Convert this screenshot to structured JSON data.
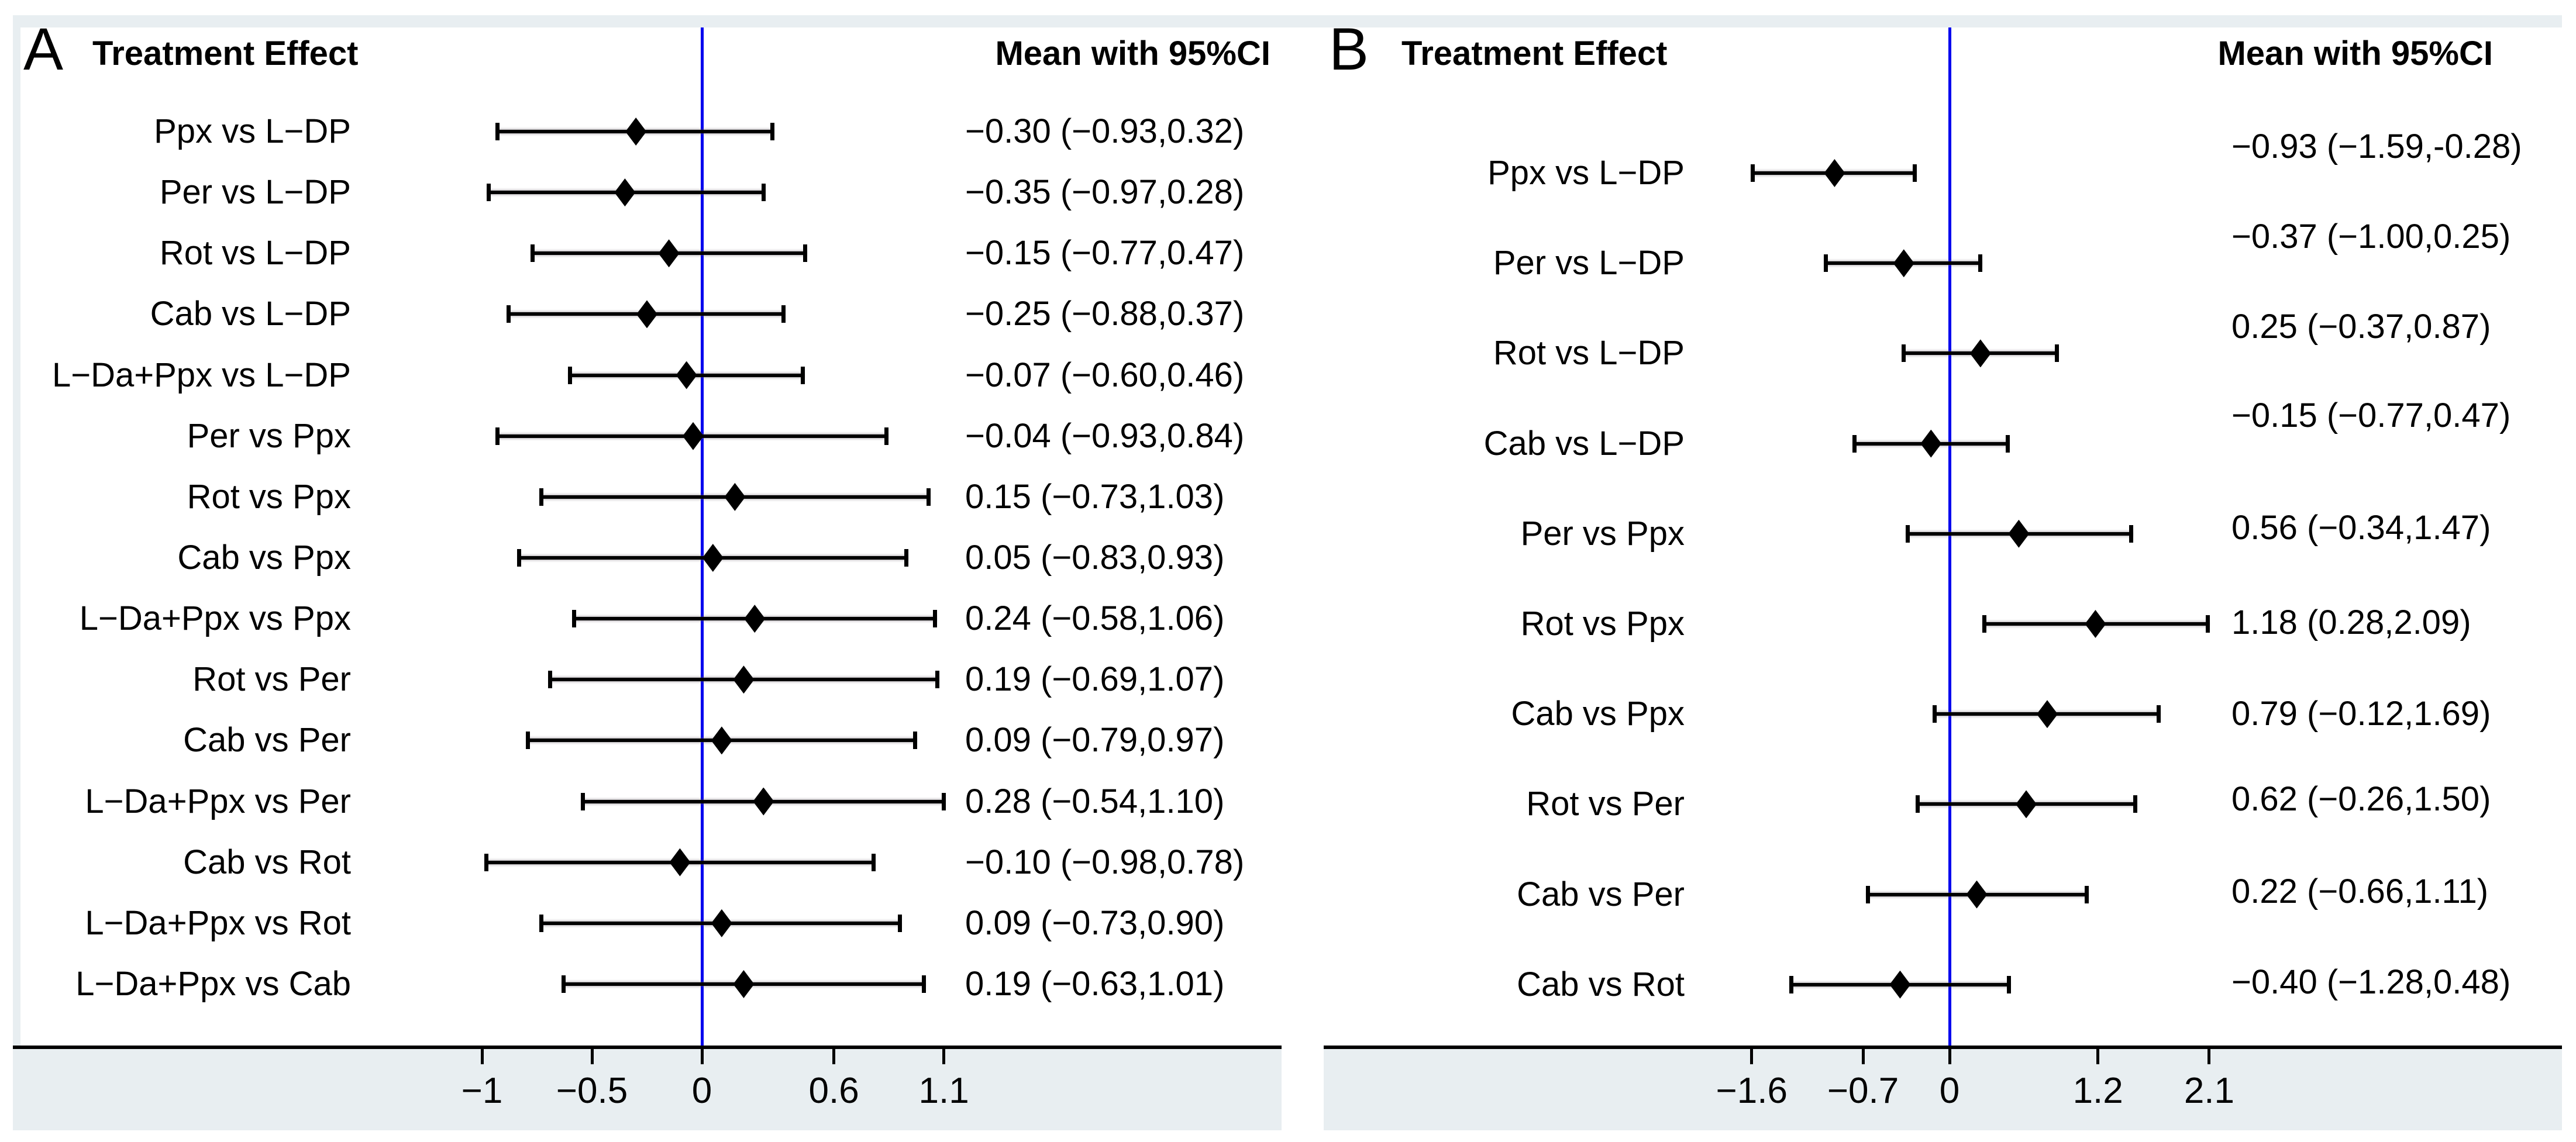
{
  "chart_data": {
    "type": "forest",
    "title": "",
    "grid": false,
    "legend_position": "none",
    "colors": {
      "zero_line": "#0000ee",
      "band": "#e8eef1",
      "ink": "#000000"
    },
    "panels": [
      {
        "panel_letter": "A",
        "header_left": "Treatment Effect",
        "header_right": "Mean with 95%CI",
        "zero_line_value": 0,
        "xlim": [
          -1.35,
          1.55
        ],
        "axis_ticks": [
          {
            "value": -1.0,
            "label": "−1"
          },
          {
            "value": -0.5,
            "label": "−0.5"
          },
          {
            "value": 0.0,
            "label": "0"
          },
          {
            "value": 0.6,
            "label": "0.6"
          },
          {
            "value": 1.1,
            "label": "1.1"
          }
        ],
        "rows": [
          {
            "label": "Ppx vs L−DP",
            "mean": -0.3,
            "ci_low": -0.93,
            "ci_high": 0.32,
            "text": "−0.30 (−0.93,0.32)"
          },
          {
            "label": "Per vs L−DP",
            "mean": -0.35,
            "ci_low": -0.97,
            "ci_high": 0.28,
            "text": "−0.35 (−0.97,0.28)"
          },
          {
            "label": "Rot vs L−DP",
            "mean": -0.15,
            "ci_low": -0.77,
            "ci_high": 0.47,
            "text": "−0.15 (−0.77,0.47)"
          },
          {
            "label": "Cab vs L−DP",
            "mean": -0.25,
            "ci_low": -0.88,
            "ci_high": 0.37,
            "text": "−0.25 (−0.88,0.37)"
          },
          {
            "label": "L−Da+Ppx vs L−DP",
            "mean": -0.07,
            "ci_low": -0.6,
            "ci_high": 0.46,
            "text": "−0.07 (−0.60,0.46)"
          },
          {
            "label": "Per vs Ppx",
            "mean": -0.04,
            "ci_low": -0.93,
            "ci_high": 0.84,
            "text": "−0.04 (−0.93,0.84)"
          },
          {
            "label": "Rot vs Ppx",
            "mean": 0.15,
            "ci_low": -0.73,
            "ci_high": 1.03,
            "text": "0.15 (−0.73,1.03)"
          },
          {
            "label": "Cab vs Ppx",
            "mean": 0.05,
            "ci_low": -0.83,
            "ci_high": 0.93,
            "text": "0.05 (−0.83,0.93)"
          },
          {
            "label": "L−Da+Ppx vs Ppx",
            "mean": 0.24,
            "ci_low": -0.58,
            "ci_high": 1.06,
            "text": "0.24 (−0.58,1.06)"
          },
          {
            "label": "Rot vs Per",
            "mean": 0.19,
            "ci_low": -0.69,
            "ci_high": 1.07,
            "text": "0.19 (−0.69,1.07)"
          },
          {
            "label": "Cab vs Per",
            "mean": 0.09,
            "ci_low": -0.79,
            "ci_high": 0.97,
            "text": "0.09 (−0.79,0.97)"
          },
          {
            "label": "L−Da+Ppx vs Per",
            "mean": 0.28,
            "ci_low": -0.54,
            "ci_high": 1.1,
            "text": "0.28 (−0.54,1.10)"
          },
          {
            "label": "Cab vs Rot",
            "mean": -0.1,
            "ci_low": -0.98,
            "ci_high": 0.78,
            "text": "−0.10 (−0.98,0.78)"
          },
          {
            "label": "L−Da+Ppx vs Rot",
            "mean": 0.09,
            "ci_low": -0.73,
            "ci_high": 0.9,
            "text": "0.09 (−0.73,0.90)"
          },
          {
            "label": "L−Da+Ppx vs Cab",
            "mean": 0.19,
            "ci_low": -0.63,
            "ci_high": 1.01,
            "text": "0.19 (−0.63,1.01)"
          }
        ]
      },
      {
        "panel_letter": "B",
        "header_left": "Treatment Effect",
        "header_right": "Mean with 95%CI",
        "zero_line_value": 0,
        "xlim": [
          -2.1,
          2.6
        ],
        "axis_ticks": [
          {
            "value": -1.6,
            "label": "−1.6"
          },
          {
            "value": -0.7,
            "label": "−0.7"
          },
          {
            "value": 0.0,
            "label": "0"
          },
          {
            "value": 1.2,
            "label": "1.2"
          },
          {
            "value": 2.1,
            "label": "2.1"
          }
        ],
        "rows": [
          {
            "label": "Ppx vs L−DP",
            "mean": -0.93,
            "ci_low": -1.59,
            "ci_high": -0.28,
            "text": "−0.93 (−1.59,-0.28)"
          },
          {
            "label": "Per vs L−DP",
            "mean": -0.37,
            "ci_low": -1.0,
            "ci_high": 0.25,
            "text": "−0.37 (−1.00,0.25)"
          },
          {
            "label": "Rot vs L−DP",
            "mean": 0.25,
            "ci_low": -0.37,
            "ci_high": 0.87,
            "text": "0.25 (−0.37,0.87)"
          },
          {
            "label": "Cab vs L−DP",
            "mean": -0.15,
            "ci_low": -0.77,
            "ci_high": 0.47,
            "text": "−0.15 (−0.77,0.47)"
          },
          {
            "label": "Per vs Ppx",
            "mean": 0.56,
            "ci_low": -0.34,
            "ci_high": 1.47,
            "text": "0.56 (−0.34,1.47)"
          },
          {
            "label": "Rot vs Ppx",
            "mean": 1.18,
            "ci_low": 0.28,
            "ci_high": 2.09,
            "text": "1.18 (0.28,2.09)"
          },
          {
            "label": "Cab vs Ppx",
            "mean": 0.79,
            "ci_low": -0.12,
            "ci_high": 1.69,
            "text": "0.79 (−0.12,1.69)"
          },
          {
            "label": "Rot vs Per",
            "mean": 0.62,
            "ci_low": -0.26,
            "ci_high": 1.5,
            "text": "0.62 (−0.26,1.50)"
          },
          {
            "label": "Cab vs Per",
            "mean": 0.22,
            "ci_low": -0.66,
            "ci_high": 1.11,
            "text": "0.22 (−0.66,1.11)"
          },
          {
            "label": "Cab vs Rot",
            "mean": -0.4,
            "ci_low": -1.28,
            "ci_high": 0.48,
            "text": "−0.40 (−1.28,0.48)"
          }
        ]
      }
    ]
  }
}
